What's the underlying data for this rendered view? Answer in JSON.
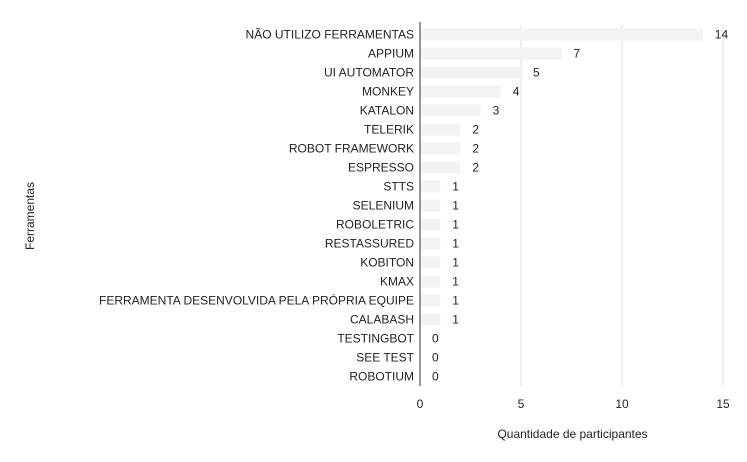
{
  "chart_data": {
    "type": "bar",
    "orientation": "horizontal",
    "xlabel": "Quantidade de participantes",
    "ylabel": "Ferramentas",
    "xlim": [
      0,
      15
    ],
    "xticks": [
      0,
      5,
      10,
      15
    ],
    "grid": true,
    "bar_color": "#f3f3f3",
    "categories": [
      "NÃO UTILIZO FERRAMENTAS",
      "APPIUM",
      "UI AUTOMATOR",
      "MONKEY",
      "KATALON",
      "TELERIK",
      "ROBOT FRAMEWORK",
      "ESPRESSO",
      "STTS",
      "SELENIUM",
      "ROBOLETRIC",
      "RESTASSURED",
      "KOBITON",
      "KMAX",
      "FERRAMENTA DESENVOLVIDA PELA PRÓPRIA EQUIPE",
      "CALABASH",
      "TESTINGBOT",
      "SEE TEST",
      "ROBOTIUM"
    ],
    "values": [
      14,
      7,
      5,
      4,
      3,
      2,
      2,
      2,
      1,
      1,
      1,
      1,
      1,
      1,
      1,
      1,
      0,
      0,
      0
    ]
  }
}
